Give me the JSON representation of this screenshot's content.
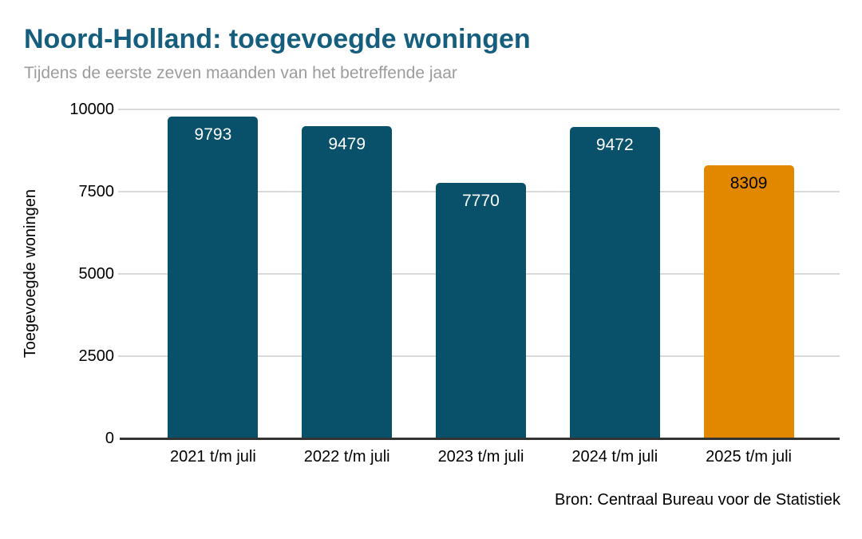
{
  "title": "Noord-Holland: toegevoegde woningen",
  "subtitle": "Tijdens de eerste zeven maanden van het betreffende jaar",
  "source": "Bron: Centraal Bureau voor de Statistiek",
  "colors": {
    "bar_primary": "#09506B",
    "bar_highlight": "#E28800",
    "title_text": "#165E7D",
    "subtitle_text": "#9C9C9C",
    "gridline": "#D9D9D9",
    "axis_line": "#333333",
    "bar_label_on_primary": "#FFFFFF",
    "bar_label_on_highlight": "#000000"
  },
  "chart_data": {
    "type": "bar",
    "title": "Noord-Holland: toegevoegde woningen",
    "subtitle": "Tijdens de eerste zeven maanden van het betreffende jaar",
    "categories": [
      "2021 t/m juli",
      "2022 t/m juli",
      "2023 t/m juli",
      "2024 t/m juli",
      "2025 t/m juli"
    ],
    "values": [
      9793,
      9479,
      7770,
      9472,
      8309
    ],
    "data_labels_shown": true,
    "highlight_index": 4,
    "xlabel": "",
    "ylabel": "Toegevoegde woningen",
    "ylim": [
      0,
      10000
    ],
    "yticks": [
      0,
      2500,
      5000,
      7500,
      10000
    ],
    "grid": true,
    "legend": false,
    "source": "Bron: Centraal Bureau voor de Statistiek"
  }
}
